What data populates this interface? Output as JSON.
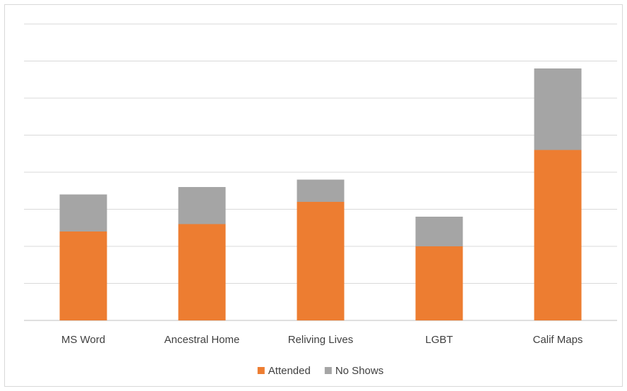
{
  "chart_data": {
    "type": "bar",
    "stacked": true,
    "categories": [
      "MS Word",
      "Ancestral Home",
      "Reliving Lives",
      "LGBT",
      "Calif Maps"
    ],
    "series": [
      {
        "name": "Attended",
        "color": "#ED7D31",
        "values": [
          12,
          13,
          16,
          10,
          23
        ]
      },
      {
        "name": "No Shows",
        "color": "#A5A5A5",
        "values": [
          5,
          5,
          3,
          4,
          11
        ]
      }
    ],
    "ylim": [
      0,
      40
    ],
    "grid": true,
    "y_tick_labels_shown": false,
    "legend": "bottom-center"
  }
}
